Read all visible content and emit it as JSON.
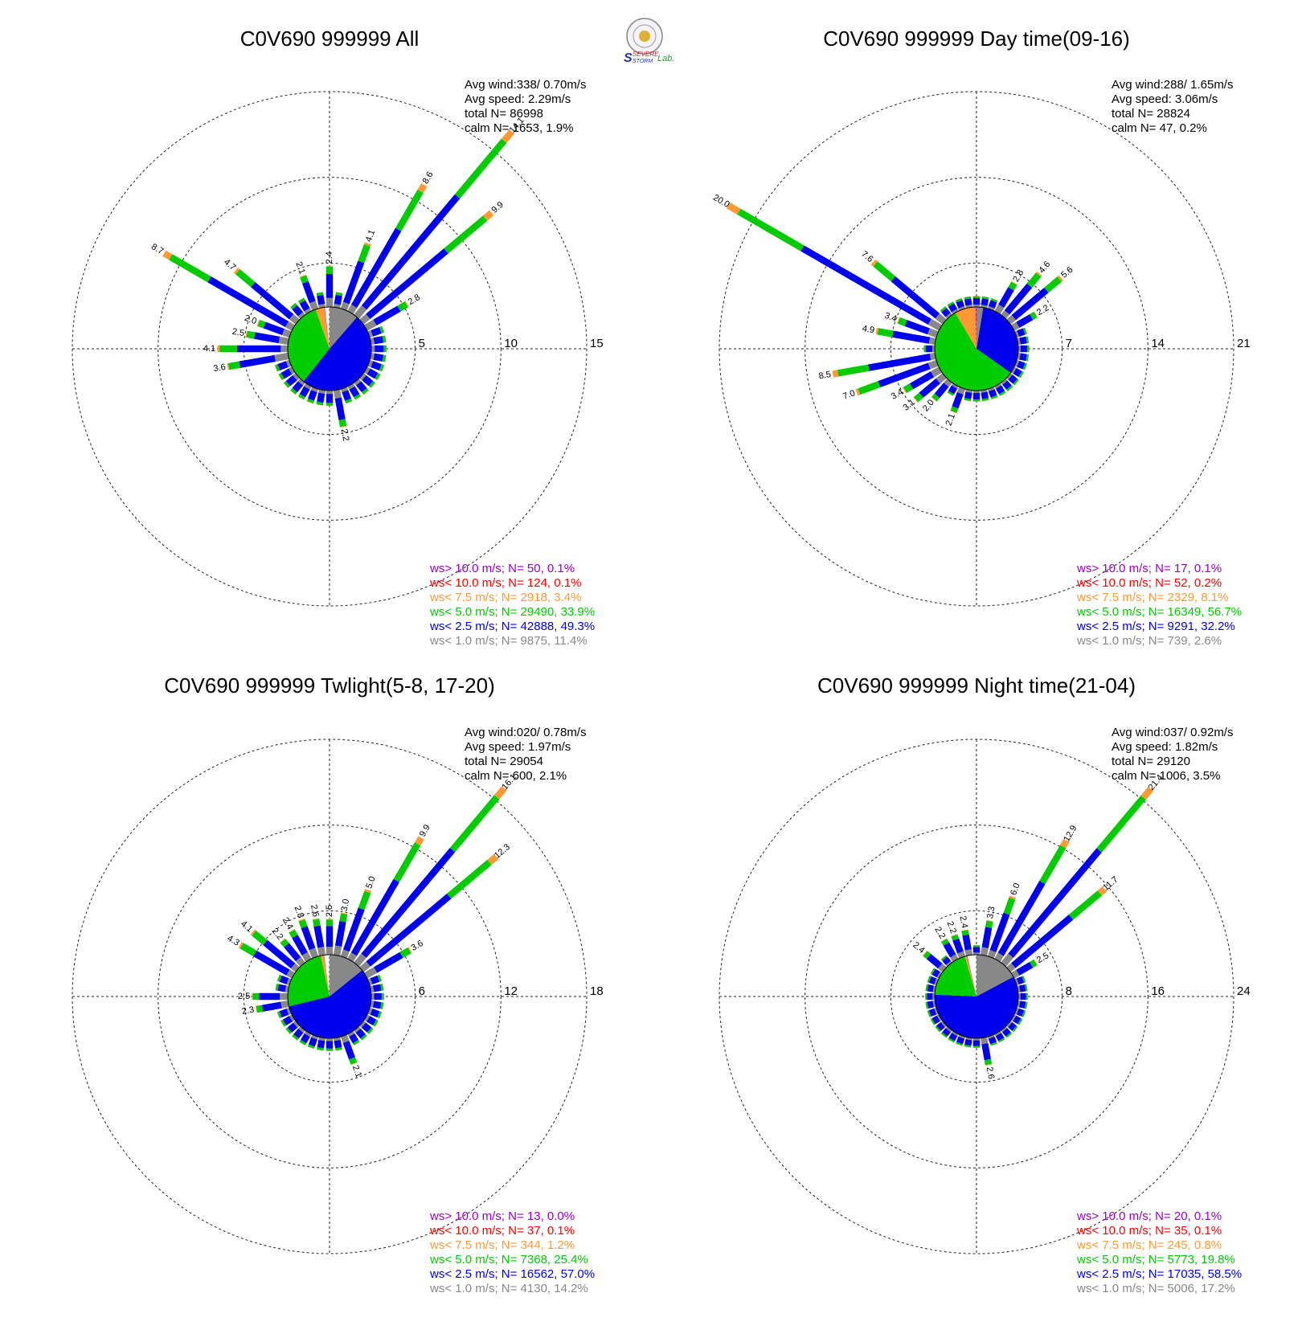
{
  "colors": {
    "lt1": "#888888",
    "lt25": "#0000ee",
    "lt5": "#00cc00",
    "lt75": "#ff9933",
    "lt10": "#ff0000",
    "gt10": "#9900cc"
  },
  "logo": {
    "text1": "SEVERE",
    "text2": "STORM",
    "text3": "Lab."
  },
  "chart_data": [
    {
      "type": "wind-rose",
      "title": "C0V690 999999 All",
      "ring_labels": [
        "5",
        "10",
        "15"
      ],
      "max_ring": 15,
      "stats": [
        "Avg wind:338/ 0.70m/s",
        "Avg speed: 2.29m/s",
        "total N=      86998",
        "calm N=   1653,   1.9%"
      ],
      "legend": [
        {
          "key": "gt10",
          "text": "ws> 10.0 m/s; N=    50,  0.1%"
        },
        {
          "key": "lt10",
          "text": "ws< 10.0 m/s; N=   124,  0.1%"
        },
        {
          "key": "lt75",
          "text": "ws<  7.5 m/s; N=  2918,  3.4%"
        },
        {
          "key": "lt5",
          "text": "ws<  5.0 m/s; N= 29490, 33.9%"
        },
        {
          "key": "lt25",
          "text": "ws<  2.5 m/s; N= 42888, 49.3%"
        },
        {
          "key": "lt1",
          "text": "ws<  1.0 m/s; N=  9875, 11.4%"
        }
      ],
      "pie": [
        0.114,
        0.493,
        0.339,
        0.034,
        0.001,
        0.001
      ],
      "bars": [
        {
          "dir": 0,
          "total": 2.4,
          "label": "2.4"
        },
        {
          "dir": 20,
          "total": 4.1,
          "label": "4.1"
        },
        {
          "dir": 30,
          "total": 8.6,
          "label": "8.6"
        },
        {
          "dir": 40,
          "total": 14.1,
          "label": "14.1"
        },
        {
          "dir": 50,
          "total": 9.9,
          "label": "9.9"
        },
        {
          "dir": 60,
          "total": 2.8,
          "label": "2.8"
        },
        {
          "dir": 170,
          "total": 2.2,
          "label": "2.2"
        },
        {
          "dir": 260,
          "total": 3.6,
          "label": "3.6"
        },
        {
          "dir": 270,
          "total": 4.1,
          "label": "4.1"
        },
        {
          "dir": 280,
          "total": 2.5,
          "label": "2.5"
        },
        {
          "dir": 290,
          "total": 2.0,
          "label": "2.0"
        },
        {
          "dir": 300,
          "total": 8.7,
          "label": "8.7"
        },
        {
          "dir": 310,
          "total": 4.7,
          "label": "4.7"
        },
        {
          "dir": 340,
          "total": 2.1,
          "label": "2.1"
        }
      ]
    },
    {
      "type": "wind-rose",
      "title": "C0V690 999999 Day time(09-16)",
      "ring_labels": [
        "7",
        "14",
        "21"
      ],
      "max_ring": 21,
      "stats": [
        "Avg wind:288/ 1.65m/s",
        "Avg speed: 3.06m/s",
        "total N=      28824",
        "calm N=     47,   0.2%"
      ],
      "legend": [
        {
          "key": "gt10",
          "text": "ws> 10.0 m/s; N=    17,  0.1%"
        },
        {
          "key": "lt10",
          "text": "ws< 10.0 m/s; N=    52,  0.2%"
        },
        {
          "key": "lt75",
          "text": "ws<  7.5 m/s; N=  2329,  8.1%"
        },
        {
          "key": "lt5",
          "text": "ws<  5.0 m/s; N= 16349, 56.7%"
        },
        {
          "key": "lt25",
          "text": "ws<  2.5 m/s; N=  9291, 32.2%"
        },
        {
          "key": "lt1",
          "text": "ws<  1.0 m/s; N=   739,  2.6%"
        }
      ],
      "pie": [
        0.026,
        0.322,
        0.567,
        0.081,
        0.002,
        0.001
      ],
      "bars": [
        {
          "dir": 30,
          "total": 2.8,
          "label": "2.8"
        },
        {
          "dir": 40,
          "total": 4.6,
          "label": "4.6"
        },
        {
          "dir": 50,
          "total": 5.6,
          "label": "5.6"
        },
        {
          "dir": 60,
          "total": 2.2,
          "label": "2.2"
        },
        {
          "dir": 200,
          "total": 2.1,
          "label": "2.1"
        },
        {
          "dir": 220,
          "total": 2.0,
          "label": "2.0"
        },
        {
          "dir": 230,
          "total": 3.1,
          "label": "3.1"
        },
        {
          "dir": 240,
          "total": 3.4,
          "label": "3.4"
        },
        {
          "dir": 250,
          "total": 7.0,
          "label": "7.0"
        },
        {
          "dir": 260,
          "total": 8.5,
          "label": "8.5"
        },
        {
          "dir": 280,
          "total": 4.9,
          "label": "4.9"
        },
        {
          "dir": 290,
          "total": 3.4,
          "label": "3.4"
        },
        {
          "dir": 300,
          "total": 20.0,
          "label": "20.0"
        },
        {
          "dir": 310,
          "total": 7.6,
          "label": "7.6"
        }
      ]
    },
    {
      "type": "wind-rose",
      "title": "C0V690 999999 Twlight(5-8, 17-20)",
      "ring_labels": [
        "6",
        "12",
        "18"
      ],
      "max_ring": 18,
      "stats": [
        "Avg wind:020/ 0.78m/s",
        "Avg speed: 1.97m/s",
        "total N=      29054",
        "calm N=    600,   2.1%"
      ],
      "legend": [
        {
          "key": "gt10",
          "text": "ws> 10.0 m/s; N=    13,  0.0%"
        },
        {
          "key": "lt10",
          "text": "ws< 10.0 m/s; N=    37,  0.1%"
        },
        {
          "key": "lt75",
          "text": "ws<  7.5 m/s; N=   344,  1.2%"
        },
        {
          "key": "lt5",
          "text": "ws<  5.0 m/s; N=  7368, 25.4%"
        },
        {
          "key": "lt25",
          "text": "ws<  2.5 m/s; N= 16562, 57.0%"
        },
        {
          "key": "lt1",
          "text": "ws<  1.0 m/s; N=  4130, 14.2%"
        }
      ],
      "pie": [
        0.142,
        0.57,
        0.254,
        0.012,
        0.001,
        0.0004
      ],
      "bars": [
        {
          "dir": 0,
          "total": 2.5,
          "label": "2.5"
        },
        {
          "dir": 10,
          "total": 3.0,
          "label": "3.0"
        },
        {
          "dir": 20,
          "total": 5.0,
          "label": "5.0"
        },
        {
          "dir": 30,
          "total": 9.9,
          "label": "9.9"
        },
        {
          "dir": 40,
          "total": 16.1,
          "label": "16.1"
        },
        {
          "dir": 50,
          "total": 12.3,
          "label": "12.3"
        },
        {
          "dir": 60,
          "total": 3.6,
          "label": "3.6"
        },
        {
          "dir": 160,
          "total": 2.1,
          "label": "2.1"
        },
        {
          "dir": 260,
          "total": 2.3,
          "label": "2.3"
        },
        {
          "dir": 270,
          "total": 2.5,
          "label": "2.5"
        },
        {
          "dir": 300,
          "total": 4.3,
          "label": "4.3"
        },
        {
          "dir": 310,
          "total": 4.1,
          "label": "4.1"
        },
        {
          "dir": 320,
          "total": 2.2,
          "label": "2.2"
        },
        {
          "dir": 330,
          "total": 2.4,
          "label": "2.4"
        },
        {
          "dir": 340,
          "total": 2.8,
          "label": "2.8"
        },
        {
          "dir": 350,
          "total": 2.6,
          "label": "2.6"
        }
      ]
    },
    {
      "type": "wind-rose",
      "title": "C0V690 999999 Night time(21-04)",
      "ring_labels": [
        "8",
        "16",
        "24"
      ],
      "max_ring": 24,
      "stats": [
        "Avg wind:037/ 0.92m/s",
        "Avg speed: 1.82m/s",
        "total N=      29120",
        "calm N=   1006,   3.5%"
      ],
      "legend": [
        {
          "key": "gt10",
          "text": "ws> 10.0 m/s; N=    20,  0.1%"
        },
        {
          "key": "lt10",
          "text": "ws< 10.0 m/s; N=    35,  0.1%"
        },
        {
          "key": "lt75",
          "text": "ws<  7.5 m/s; N=   245,  0.8%"
        },
        {
          "key": "lt5",
          "text": "ws<  5.0 m/s; N=  5773, 19.8%"
        },
        {
          "key": "lt25",
          "text": "ws<  2.5 m/s; N= 17035, 58.5%"
        },
        {
          "key": "lt1",
          "text": "ws<  1.0 m/s; N=  5006, 17.2%"
        }
      ],
      "pie": [
        0.172,
        0.585,
        0.198,
        0.008,
        0.001,
        0.001
      ],
      "bars": [
        {
          "dir": 10,
          "total": 3.3,
          "label": "3.3"
        },
        {
          "dir": 20,
          "total": 6.0,
          "label": "6.0"
        },
        {
          "dir": 30,
          "total": 12.9,
          "label": "12.9"
        },
        {
          "dir": 40,
          "total": 21.4,
          "label": "21.4"
        },
        {
          "dir": 50,
          "total": 11.7,
          "label": "11.7"
        },
        {
          "dir": 60,
          "total": 2.5,
          "label": "2.5"
        },
        {
          "dir": 170,
          "total": 2.6,
          "label": "2.6"
        },
        {
          "dir": 310,
          "total": 2.4,
          "label": "2.4"
        },
        {
          "dir": 330,
          "total": 2.2,
          "label": "2.2"
        },
        {
          "dir": 340,
          "total": 2.2,
          "label": "2.2"
        },
        {
          "dir": 350,
          "total": 2.4,
          "label": "2.4"
        }
      ]
    }
  ]
}
